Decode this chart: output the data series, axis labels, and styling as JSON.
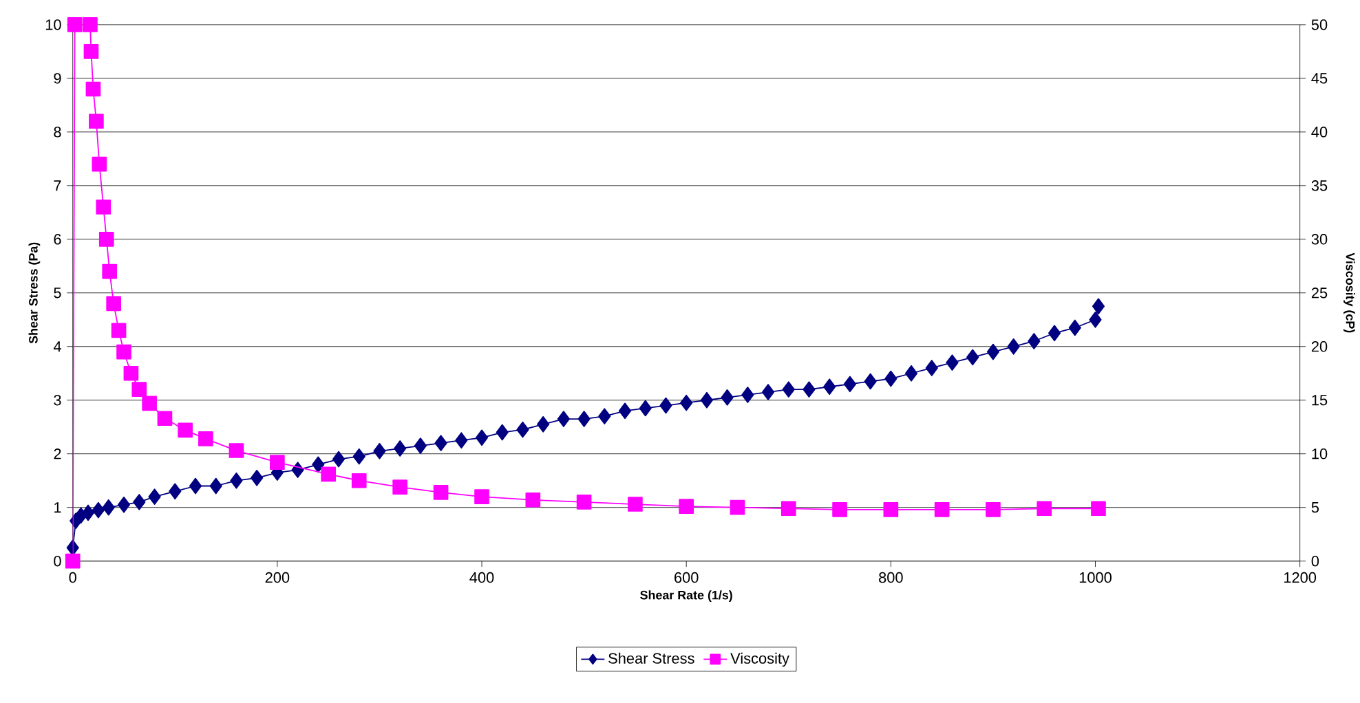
{
  "chart_data": {
    "type": "line",
    "xlabel": "Shear Rate (1/s)",
    "ylabel": "Shear Stress (Pa)",
    "y2label": "Viscosity (cP)",
    "xlim": [
      0,
      1200
    ],
    "xticks": [
      0,
      200,
      400,
      600,
      800,
      1000,
      1200
    ],
    "ylim": [
      0,
      10
    ],
    "yticks": [
      0,
      1,
      2,
      3,
      4,
      5,
      6,
      7,
      8,
      9,
      10
    ],
    "y2lim": [
      0,
      50
    ],
    "y2ticks": [
      0,
      5,
      10,
      15,
      20,
      25,
      30,
      35,
      40,
      45,
      50
    ],
    "grid": "y",
    "legend": "bottom",
    "line_style": "solid",
    "series": [
      {
        "name": "Shear Stress",
        "color": "#000080",
        "marker": "diamond",
        "x": [
          0,
          3,
          8,
          15,
          25,
          35,
          50,
          65,
          80,
          100,
          120,
          140,
          160,
          180,
          200,
          220,
          240,
          260,
          280,
          300,
          320,
          340,
          360,
          380,
          400,
          420,
          440,
          460,
          480,
          500,
          520,
          540,
          560,
          580,
          600,
          620,
          640,
          660,
          680,
          700,
          720,
          740,
          760,
          780,
          800,
          820,
          840,
          860,
          880,
          900,
          920,
          940,
          960,
          980,
          1000,
          1003
        ],
        "values": [
          0.25,
          0.75,
          0.85,
          0.9,
          0.95,
          1.0,
          1.05,
          1.1,
          1.2,
          1.3,
          1.4,
          1.4,
          1.5,
          1.55,
          1.65,
          1.7,
          1.8,
          1.9,
          1.95,
          2.05,
          2.1,
          2.15,
          2.2,
          2.25,
          2.3,
          2.4,
          2.45,
          2.55,
          2.65,
          2.65,
          2.7,
          2.8,
          2.85,
          2.9,
          2.95,
          3.0,
          3.05,
          3.1,
          3.15,
          3.2,
          3.2,
          3.25,
          3.3,
          3.35,
          3.4,
          3.5,
          3.6,
          3.7,
          3.8,
          3.9,
          4.0,
          4.1,
          4.25,
          4.35,
          4.5,
          4.75
        ]
      },
      {
        "name": "Viscosity",
        "color": "#ff00ff",
        "marker": "square",
        "axis": "y2",
        "x": [
          0,
          2,
          17,
          18,
          20,
          23,
          26,
          30,
          33,
          36,
          40,
          45,
          50,
          57,
          65,
          75,
          90,
          110,
          130,
          160,
          200,
          250,
          280,
          320,
          360,
          400,
          450,
          500,
          550,
          600,
          650,
          700,
          750,
          800,
          850,
          900,
          950,
          1003
        ],
        "values": [
          0,
          50,
          50,
          47.5,
          44,
          41,
          37,
          33,
          30,
          27,
          24,
          21.5,
          19.5,
          17.5,
          16,
          14.7,
          13.3,
          12.2,
          11.4,
          10.3,
          9.2,
          8.1,
          7.5,
          6.9,
          6.4,
          6.0,
          5.7,
          5.5,
          5.3,
          5.1,
          5.0,
          4.9,
          4.8,
          4.8,
          4.8,
          4.8,
          4.9,
          4.9
        ]
      }
    ]
  }
}
